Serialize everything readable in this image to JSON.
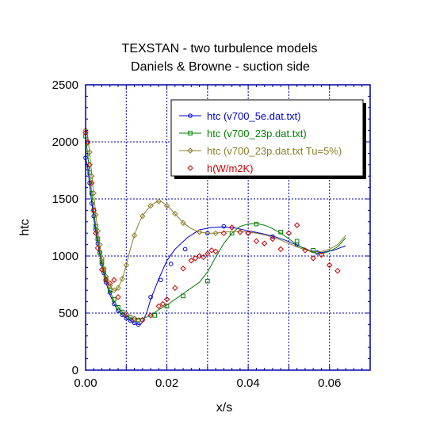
{
  "chart_data": {
    "type": "line",
    "title": "TEXSTAN - two turbulence models",
    "subtitle": "Daniels & Browne - suction side",
    "xlabel": "x/s",
    "ylabel": "htc",
    "xlim": [
      0,
      0.07
    ],
    "ylim": [
      0,
      2500
    ],
    "xticks": [
      "0.00",
      "0.02",
      "0.04",
      "0.06"
    ],
    "xtick_values": [
      0,
      0.02,
      0.04,
      0.06
    ],
    "yticks": [
      "0",
      "500",
      "1000",
      "1500",
      "2000",
      "2500"
    ],
    "ytick_values": [
      0,
      500,
      1000,
      1500,
      2000,
      2500
    ],
    "grid": true,
    "legend_position": "top-right",
    "series": [
      {
        "name": "htc (v700_5e.dat.txt)",
        "color": "#0000cc",
        "marker": "circle",
        "x": [
          0.0,
          0.0005,
          0.001,
          0.0015,
          0.002,
          0.0025,
          0.003,
          0.0035,
          0.004,
          0.005,
          0.006,
          0.007,
          0.008,
          0.009,
          0.01,
          0.011,
          0.012,
          0.013,
          0.0135,
          0.014,
          0.015,
          0.016,
          0.018,
          0.02,
          0.022,
          0.025,
          0.028,
          0.031,
          0.034,
          0.037,
          0.04,
          0.043,
          0.046,
          0.049,
          0.052,
          0.055,
          0.058,
          0.061,
          0.064
        ],
        "y": [
          1860,
          1780,
          1620,
          1470,
          1330,
          1210,
          1110,
          1010,
          920,
          770,
          660,
          580,
          520,
          485,
          455,
          435,
          415,
          400,
          400,
          420,
          500,
          620,
          800,
          960,
          1060,
          1160,
          1230,
          1250,
          1255,
          1245,
          1220,
          1200,
          1175,
          1140,
          1095,
          1050,
          1030,
          1050,
          1090
        ],
        "marker_x": [
          0.0,
          0.0005,
          0.001,
          0.0015,
          0.002,
          0.0025,
          0.003,
          0.0035,
          0.004,
          0.0045,
          0.005,
          0.006,
          0.007,
          0.008,
          0.009,
          0.01,
          0.011,
          0.012,
          0.013,
          0.016,
          0.0185,
          0.021,
          0.0245,
          0.03,
          0.034,
          0.04,
          0.046,
          0.052,
          0.057
        ],
        "marker_y": [
          1860,
          1770,
          1640,
          1460,
          1350,
          1230,
          1110,
          1030,
          930,
          850,
          770,
          680,
          580,
          520,
          485,
          455,
          435,
          415,
          400,
          640,
          790,
          930,
          1060,
          1200,
          1260,
          1200,
          1170,
          1100,
          1030
        ]
      },
      {
        "name": "htc (v700_23p.dat.txt)",
        "color": "#008000",
        "marker": "square",
        "x": [
          0.0,
          0.0005,
          0.001,
          0.0015,
          0.002,
          0.0025,
          0.003,
          0.0035,
          0.004,
          0.005,
          0.006,
          0.007,
          0.008,
          0.009,
          0.01,
          0.011,
          0.012,
          0.013,
          0.014,
          0.016,
          0.018,
          0.02,
          0.022,
          0.024,
          0.026,
          0.028,
          0.03,
          0.032,
          0.034,
          0.036,
          0.038,
          0.04,
          0.042,
          0.044,
          0.046,
          0.048,
          0.05,
          0.052,
          0.054,
          0.056,
          0.058,
          0.06,
          0.062,
          0.064
        ],
        "y": [
          2030,
          1900,
          1720,
          1550,
          1400,
          1260,
          1140,
          1030,
          940,
          800,
          690,
          610,
          550,
          510,
          480,
          460,
          450,
          445,
          450,
          480,
          530,
          570,
          620,
          670,
          720,
          770,
          860,
          990,
          1110,
          1200,
          1260,
          1280,
          1285,
          1270,
          1240,
          1200,
          1150,
          1100,
          1060,
          1030,
          1020,
          1040,
          1080,
          1160
        ],
        "marker_x": [
          0.0,
          0.0005,
          0.001,
          0.0015,
          0.002,
          0.0025,
          0.003,
          0.0035,
          0.004,
          0.0045,
          0.005,
          0.006,
          0.007,
          0.008,
          0.009,
          0.011,
          0.013,
          0.017,
          0.02,
          0.024,
          0.03,
          0.036,
          0.042,
          0.048,
          0.052,
          0.056
        ],
        "marker_y": [
          2050,
          1900,
          1730,
          1550,
          1400,
          1260,
          1150,
          1030,
          950,
          880,
          800,
          700,
          620,
          550,
          510,
          460,
          440,
          480,
          560,
          650,
          780,
          1200,
          1280,
          1210,
          1130,
          1050
        ]
      },
      {
        "name": "htc (v700_23p.dat.txt Tu=5%)",
        "color": "#8b7d2a",
        "marker": "diamond",
        "x": [
          0.0,
          0.0005,
          0.001,
          0.0015,
          0.002,
          0.0025,
          0.003,
          0.0035,
          0.004,
          0.0045,
          0.005,
          0.0055,
          0.006,
          0.0065,
          0.007,
          0.0075,
          0.008,
          0.009,
          0.01,
          0.011,
          0.012,
          0.013,
          0.014,
          0.015,
          0.016,
          0.017,
          0.018,
          0.019,
          0.02,
          0.021,
          0.022,
          0.023,
          0.024,
          0.026,
          0.028,
          0.03,
          0.032,
          0.034,
          0.036,
          0.038,
          0.04,
          0.042,
          0.044,
          0.046,
          0.048,
          0.05,
          0.052,
          0.054,
          0.056,
          0.058,
          0.06,
          0.062,
          0.064
        ],
        "y": [
          2100,
          2060,
          1900,
          1720,
          1540,
          1370,
          1220,
          1090,
          980,
          890,
          820,
          770,
          740,
          715,
          700,
          700,
          720,
          800,
          920,
          1060,
          1180,
          1280,
          1350,
          1400,
          1440,
          1465,
          1480,
          1470,
          1440,
          1410,
          1370,
          1330,
          1290,
          1240,
          1210,
          1200,
          1200,
          1210,
          1215,
          1215,
          1210,
          1200,
          1185,
          1165,
          1140,
          1110,
          1080,
          1055,
          1040,
          1040,
          1060,
          1100,
          1180
        ],
        "marker_x": [
          0.0,
          0.0005,
          0.001,
          0.0015,
          0.002,
          0.0025,
          0.003,
          0.0035,
          0.004,
          0.0045,
          0.005,
          0.006,
          0.007,
          0.008,
          0.009,
          0.01,
          0.012,
          0.014,
          0.016,
          0.018,
          0.02,
          0.022,
          0.024,
          0.028,
          0.032
        ],
        "marker_y": [
          2100,
          1990,
          1910,
          1700,
          1550,
          1360,
          1220,
          1100,
          980,
          890,
          820,
          740,
          700,
          720,
          800,
          920,
          1180,
          1350,
          1440,
          1480,
          1440,
          1370,
          1290,
          1210,
          1200
        ]
      },
      {
        "name": "h(W/m2K)",
        "color": "#cc0000",
        "marker": "diamond",
        "scatter": true,
        "x": [
          0.0,
          0.0005,
          0.001,
          0.0015,
          0.002,
          0.0025,
          0.003,
          0.004,
          0.005,
          0.006,
          0.007,
          0.008,
          0.01,
          0.012,
          0.014,
          0.016,
          0.018,
          0.019,
          0.02,
          0.022,
          0.024,
          0.026,
          0.027,
          0.028,
          0.029,
          0.03,
          0.031,
          0.032,
          0.034,
          0.036,
          0.038,
          0.04,
          0.042,
          0.044,
          0.046,
          0.048,
          0.05,
          0.052,
          0.054,
          0.056,
          0.058,
          0.06,
          0.062
        ],
        "y": [
          2080,
          2000,
          1800,
          1640,
          1400,
          1200,
          1070,
          880,
          790,
          760,
          790,
          640,
          490,
          450,
          440,
          480,
          560,
          580,
          620,
          720,
          890,
          960,
          980,
          1000,
          990,
          1020,
          1050,
          1040,
          1200,
          1250,
          1210,
          1200,
          1130,
          1110,
          1150,
          1060,
          1200,
          1270,
          1050,
          980,
          1010,
          920,
          870
        ]
      }
    ]
  }
}
